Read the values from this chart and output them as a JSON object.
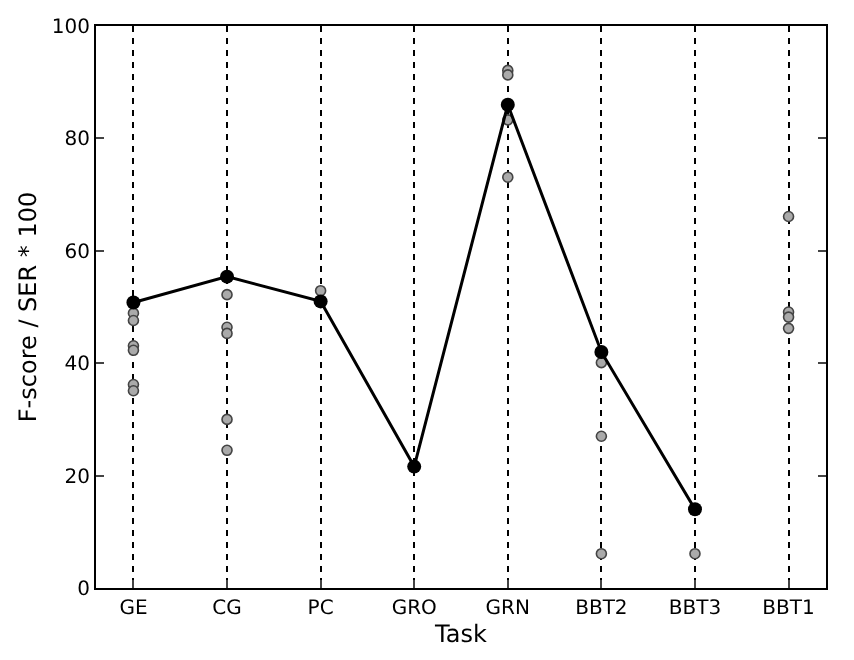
{
  "chart_data": {
    "type": "line",
    "xlabel": "Task",
    "ylabel": "F-score / SER * 100",
    "categories": [
      "GE",
      "CG",
      "PC",
      "GRO",
      "GRN",
      "BBT2",
      "BBT3",
      "BBT1"
    ],
    "ylim": [
      0,
      100
    ],
    "yticks": [
      0,
      20,
      40,
      60,
      80,
      100
    ],
    "grid": "x",
    "marker": "circle",
    "series": [
      {
        "color": "#000000",
        "values": [
          50.8,
          55.4,
          51,
          21.6,
          86,
          42,
          14,
          null
        ]
      },
      {
        "type": "scatter",
        "color": "#aaaaaa",
        "x": [
          "GE",
          "GE",
          "GE",
          "GE",
          "GE",
          "GE",
          "CG",
          "CG",
          "CG",
          "CG",
          "CG",
          "PC",
          "GRN",
          "GRN",
          "GRN",
          "GRN",
          "BBT2",
          "BBT2",
          "BBT2",
          "BBT3",
          "BBT1",
          "BBT1",
          "BBT1",
          "BBT1"
        ],
        "values": [
          48.9,
          47.6,
          43.1,
          42.3,
          36.2,
          35.1,
          52.2,
          46.4,
          45.3,
          30.0,
          24.5,
          52.9,
          92.1,
          91.3,
          83.3,
          73.1,
          40.1,
          27.0,
          6.1,
          6.1,
          66.1,
          49.1,
          48.2,
          46.2
        ]
      }
    ]
  }
}
